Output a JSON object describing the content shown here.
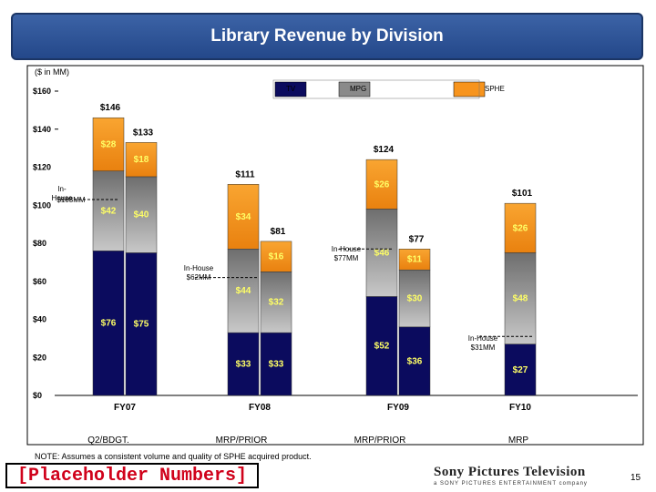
{
  "slide": {
    "title": "Library Revenue by Division",
    "note": "NOTE: Assumes a consistent volume and quality of SPHE acquired product.",
    "placeholder": "[Placeholder Numbers]",
    "logo_main": "Sony Pictures Television",
    "logo_sub": "a SONY PICTURES ENTERTAINMENT company",
    "page_number": "15"
  },
  "colors": {
    "TV": "#0b0b5e",
    "MPG": "#8a8a8a",
    "SPHE": "#f7941d",
    "title_bar": "#2f559a",
    "data_label": "#ffff66"
  },
  "chart_data": {
    "type": "bar",
    "stacked": true,
    "unit_label": "($ in MM)",
    "ylim": [
      0,
      160
    ],
    "y_ticks": [
      0,
      20,
      40,
      60,
      80,
      100,
      120,
      140,
      160
    ],
    "y_tick_labels": [
      "$0",
      "$20",
      "$40",
      "$60",
      "$80",
      "$100",
      "$120",
      "$140",
      "$160"
    ],
    "legend": [
      "TV",
      "MPG",
      "SPHE"
    ],
    "legend_position": "top",
    "groups": [
      {
        "name": "FY07",
        "bars": [
          {
            "label": "Q2/BDGT.",
            "total": 146,
            "total_label": "$146",
            "TV": 76,
            "MPG": 42,
            "SPHE": 28,
            "labels": [
              "$76",
              "$42",
              "$28"
            ]
          },
          {
            "label": "",
            "total": 133,
            "total_label": "$133",
            "TV": 75,
            "MPG": 40,
            "SPHE": 18,
            "labels": [
              "$75",
              "$40",
              "$18"
            ]
          }
        ]
      },
      {
        "name": "FY08",
        "bars": [
          {
            "label": "MRP/PRIOR",
            "total": 111,
            "total_label": "$111",
            "TV": 33,
            "MPG": 44,
            "SPHE": 34,
            "labels": [
              "$33",
              "$44",
              "$34"
            ]
          },
          {
            "label": "",
            "total": 81,
            "total_label": "$81",
            "TV": 33,
            "MPG": 32,
            "SPHE": 16,
            "labels": [
              "$33",
              "$32",
              "$16"
            ]
          }
        ]
      },
      {
        "name": "FY09",
        "bars": [
          {
            "label": "MRP/PRIOR",
            "total": 124,
            "total_label": "$124",
            "TV": 52,
            "MPG": 46,
            "SPHE": 26,
            "labels": [
              "$52",
              "$46",
              "$26"
            ]
          },
          {
            "label": "",
            "total": 77,
            "total_label": "$77",
            "TV": 36,
            "MPG": 30,
            "SPHE": 11,
            "labels": [
              "$36",
              "$30",
              "$11"
            ]
          }
        ]
      },
      {
        "name": "FY10",
        "bars": [
          {
            "label": "MRP",
            "total": 101,
            "total_label": "$101",
            "TV": 27,
            "MPG": 48,
            "SPHE": 26,
            "labels": [
              "$27",
              "$48",
              "$26"
            ]
          }
        ]
      }
    ],
    "annotations": [
      {
        "text_lines": [
          "In-",
          "House"
        ],
        "value_text": "$103MM",
        "value": 103
      },
      {
        "text_lines": [
          "In-House"
        ],
        "value_text": "$62MM",
        "value": 62
      },
      {
        "text_lines": [
          "In-House"
        ],
        "value_text": "$77MM",
        "value": 77
      },
      {
        "text_lines": [
          "In-House"
        ],
        "value_text": "$31MM",
        "value": 31
      }
    ]
  }
}
